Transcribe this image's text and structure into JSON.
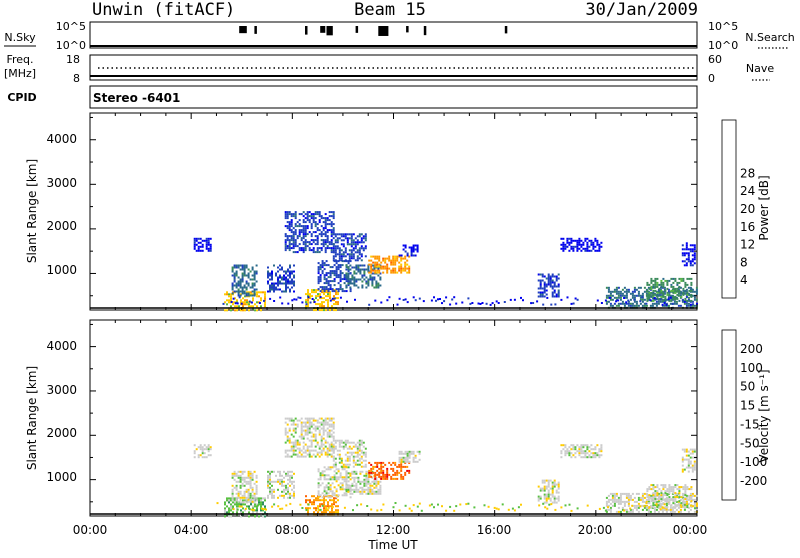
{
  "header": {
    "station": "Unwin (fitACF)",
    "beam": "Beam 15",
    "date": "30/Jan/2009"
  },
  "noise_panel": {
    "left_label": "N.Sky",
    "right_label": "N.Search",
    "left_ticks": [
      "10^5",
      "10^0"
    ],
    "right_ticks": [
      "10^5",
      "10^0"
    ]
  },
  "freq_panel": {
    "left_label_1": "Freq.",
    "left_label_2": "[MHz]",
    "right_label": "Nave",
    "left_ticks": [
      "18",
      "8"
    ],
    "right_ticks": [
      "60",
      "0"
    ]
  },
  "cpid": {
    "label": "CPID",
    "value": "Stereo -6401"
  },
  "chart_data": [
    {
      "type": "heatmap",
      "title": "",
      "ylabel": "Slant Range [km]",
      "xlabel": "",
      "ylim": [
        180,
        4600
      ],
      "yticks": [
        "1000",
        "2000",
        "3000",
        "4000"
      ],
      "colorbar": {
        "label": "Power [dB]",
        "ticks": [
          "4",
          "8",
          "12",
          "16",
          "20",
          "24",
          "28"
        ],
        "colors": [
          "#0000ee",
          "#1f3fbf",
          "#2a6a8a",
          "#3a8a5a",
          "#58b840",
          "#ffcc00",
          "#ff9900",
          "#ff6000",
          "#ff2000",
          "#ee0000"
        ]
      },
      "echo_regions": [
        {
          "t0": 5.3,
          "t1": 6.9,
          "r0": 180,
          "r1": 600,
          "level": 5
        },
        {
          "t0": 5.6,
          "t1": 6.6,
          "r0": 500,
          "r1": 1200,
          "level": 2
        },
        {
          "t0": 4.1,
          "t1": 4.8,
          "r0": 1500,
          "r1": 1800,
          "level": 0
        },
        {
          "t0": 7.0,
          "t1": 8.1,
          "r0": 600,
          "r1": 1200,
          "level": 1
        },
        {
          "t0": 7.7,
          "t1": 9.6,
          "r0": 1500,
          "r1": 2400,
          "level": 1
        },
        {
          "t0": 8.5,
          "t1": 9.8,
          "r0": 200,
          "r1": 650,
          "level": 5
        },
        {
          "t0": 9.0,
          "t1": 10.3,
          "r0": 600,
          "r1": 1300,
          "level": 1
        },
        {
          "t0": 9.6,
          "t1": 10.9,
          "r0": 1300,
          "r1": 1900,
          "level": 1
        },
        {
          "t0": 10.1,
          "t1": 11.5,
          "r0": 700,
          "r1": 1200,
          "level": 2
        },
        {
          "t0": 11.0,
          "t1": 12.6,
          "r0": 1000,
          "r1": 1400,
          "level": 6
        },
        {
          "t0": 12.2,
          "t1": 13.0,
          "r0": 1400,
          "r1": 1650,
          "level": 0
        },
        {
          "t0": 17.7,
          "t1": 18.5,
          "r0": 500,
          "r1": 1000,
          "level": 1
        },
        {
          "t0": 18.6,
          "t1": 20.2,
          "r0": 1500,
          "r1": 1800,
          "level": 0
        },
        {
          "t0": 20.4,
          "t1": 24.0,
          "r0": 250,
          "r1": 700,
          "level": 2
        },
        {
          "t0": 22.0,
          "t1": 23.8,
          "r0": 400,
          "r1": 900,
          "level": 3
        },
        {
          "t0": 23.4,
          "t1": 23.9,
          "r0": 1200,
          "r1": 1700,
          "level": 0
        }
      ]
    },
    {
      "type": "heatmap",
      "title": "",
      "ylabel": "Slant Range [km]",
      "xlabel": "Time UT",
      "ylim": [
        180,
        4600
      ],
      "yticks": [
        "1000",
        "2000",
        "3000",
        "4000"
      ],
      "xticks": [
        "00:00",
        "04:00",
        "08:00",
        "12:00",
        "16:00",
        "20:00",
        "00:00"
      ],
      "colorbar": {
        "label": "Velocity [m s⁻¹]",
        "ticks": [
          "-200",
          "-100",
          "-50",
          "-15",
          "15",
          "50",
          "100",
          "200"
        ],
        "colors": [
          "#ee0000",
          "#ff6000",
          "#ff9a00",
          "#ffcc00",
          "#cccccc",
          "#58c040",
          "#2a8a5a",
          "#1f4fbf",
          "#0000cc"
        ]
      },
      "echo_regions": [
        {
          "t0": 5.3,
          "t1": 6.9,
          "r0": 180,
          "r1": 600,
          "level": 5
        },
        {
          "t0": 5.6,
          "t1": 6.6,
          "r0": 500,
          "r1": 1200,
          "level": 4
        },
        {
          "t0": 4.1,
          "t1": 4.8,
          "r0": 1500,
          "r1": 1800,
          "level": 4
        },
        {
          "t0": 7.0,
          "t1": 8.1,
          "r0": 600,
          "r1": 1200,
          "level": 4
        },
        {
          "t0": 7.7,
          "t1": 9.6,
          "r0": 1500,
          "r1": 2400,
          "level": 4
        },
        {
          "t0": 8.5,
          "t1": 9.8,
          "r0": 200,
          "r1": 650,
          "level": 2
        },
        {
          "t0": 9.0,
          "t1": 10.3,
          "r0": 600,
          "r1": 1300,
          "level": 4
        },
        {
          "t0": 9.6,
          "t1": 10.9,
          "r0": 1300,
          "r1": 1900,
          "level": 4
        },
        {
          "t0": 10.1,
          "t1": 11.5,
          "r0": 700,
          "r1": 1200,
          "level": 4
        },
        {
          "t0": 11.0,
          "t1": 12.6,
          "r0": 1000,
          "r1": 1400,
          "level": 1
        },
        {
          "t0": 12.2,
          "t1": 13.0,
          "r0": 1400,
          "r1": 1650,
          "level": 4
        },
        {
          "t0": 17.7,
          "t1": 18.5,
          "r0": 500,
          "r1": 1000,
          "level": 4
        },
        {
          "t0": 18.6,
          "t1": 20.2,
          "r0": 1500,
          "r1": 1800,
          "level": 4
        },
        {
          "t0": 20.4,
          "t1": 24.0,
          "r0": 250,
          "r1": 700,
          "level": 4
        },
        {
          "t0": 22.0,
          "t1": 23.8,
          "r0": 400,
          "r1": 900,
          "level": 4
        },
        {
          "t0": 23.4,
          "t1": 23.9,
          "r0": 1200,
          "r1": 1700,
          "level": 4
        }
      ]
    }
  ]
}
